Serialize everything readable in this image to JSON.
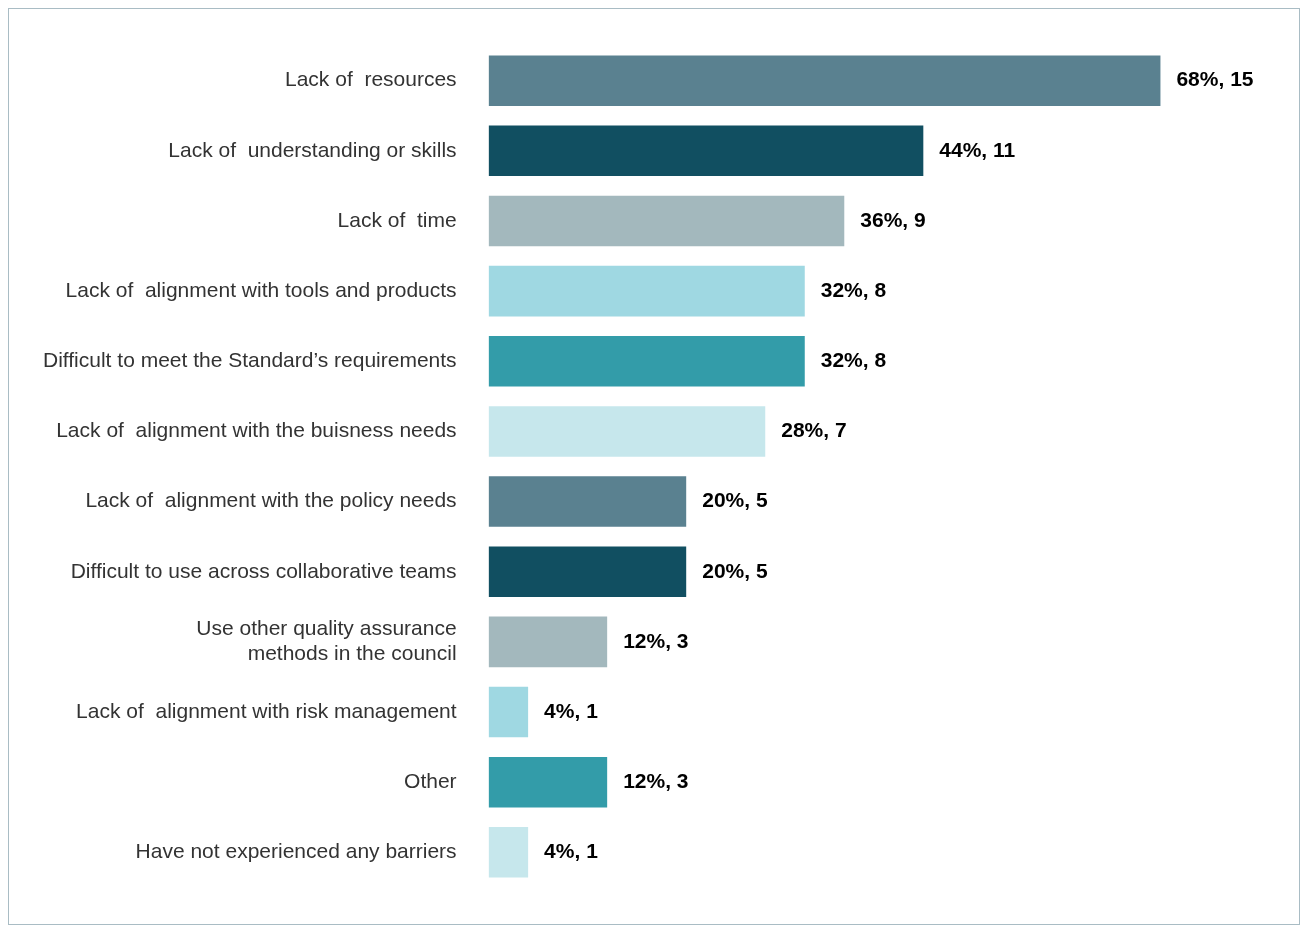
{
  "chart_data": {
    "type": "bar",
    "orientation": "horizontal",
    "categories": [
      "Lack of  resources",
      "Lack of  understanding or skills",
      "Lack of  time",
      "Lack of  alignment with tools and products",
      "Difficult to meet the Standard’s requirements",
      "Lack of  alignment with the buisness needs",
      "Lack of  alignment with the policy needs",
      "Difficult to use across collaborative teams",
      "Use other quality assurance\nmethods in the council",
      "Lack of  alignment with risk management",
      "Other",
      "Have not experienced any barriers"
    ],
    "values": [
      68,
      44,
      36,
      32,
      32,
      28,
      20,
      20,
      12,
      4,
      12,
      4
    ],
    "colors": [
      "#5a8190",
      "#114f61",
      "#a3b8bd",
      "#9fd8e2",
      "#339ca9",
      "#c6e7ec",
      "#5a8190",
      "#114f61",
      "#a3b8bd",
      "#9fd8e2",
      "#339ca9",
      "#c6e7ec"
    ],
    "value_labels": [
      "68%, 15",
      "44%, 11",
      "36%, 9",
      "32%, 8",
      "32%, 8",
      "28%, 7",
      "20%, 5",
      "20%, 5",
      "12%, 3",
      "4%, 1",
      "12%, 3",
      "4%, 1"
    ],
    "grid": false,
    "legend": false
  }
}
